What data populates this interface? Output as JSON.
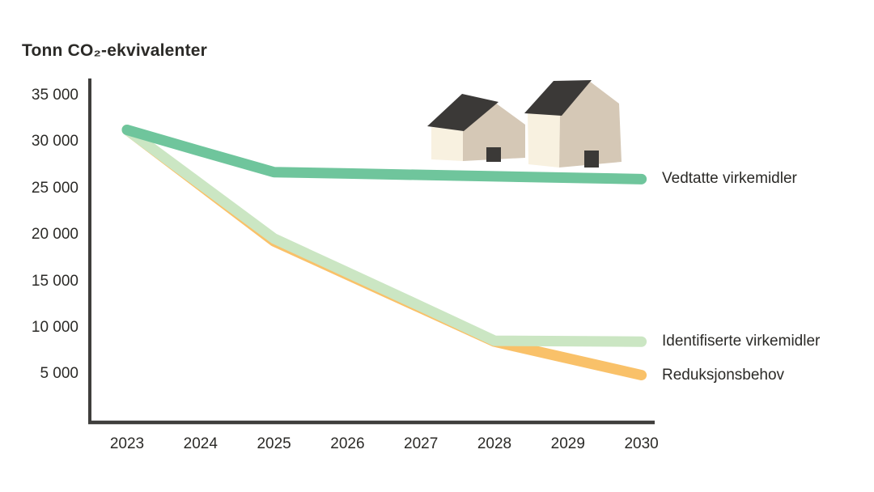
{
  "title": "Tonn CO₂-ekvivalenter",
  "colors": {
    "vedtatte": "#6fc59c",
    "identifiserte": "#cbe6c3",
    "reduksjon": "#f9c169",
    "axis": "#3f3e3c",
    "text": "#2b2a27",
    "house_cream": "#f8f1e0",
    "house_tan": "#d5c8b6",
    "house_dark": "#3b3937"
  },
  "chart_data": {
    "type": "line",
    "title": "Tonn CO₂-ekvivalenter",
    "ylabel": "Tonn CO₂-ekvivalenter",
    "x": [
      2023,
      2024,
      2025,
      2026,
      2027,
      2028,
      2029,
      2030
    ],
    "series": [
      {
        "name": "Vedtatte virkemidler",
        "color": "#6fc59c",
        "values": [
          31300,
          29000,
          26750,
          26600,
          26450,
          26300,
          26150,
          26000
        ]
      },
      {
        "name": "Identifiserte virkemidler",
        "color": "#cbe6c3",
        "values": [
          31300,
          25450,
          19600,
          15950,
          12300,
          8600,
          8550,
          8500
        ]
      },
      {
        "name": "Reduksjonsbehov",
        "color": "#f9c169",
        "values": [
          31300,
          25300,
          19300,
          15700,
          12100,
          8500,
          6700,
          4900
        ]
      }
    ],
    "ylim": [
      0,
      36500
    ],
    "yticks": [
      35000,
      30000,
      25000,
      20000,
      15000,
      10000,
      5000
    ],
    "ytick_labels": [
      "35 000",
      "30 000",
      "25 000",
      "20 000",
      "15 000",
      "10 000",
      "5 000"
    ],
    "grid": false,
    "legend_position": "right-of-line-ends",
    "annotations": [
      "two-houses-illustration"
    ]
  }
}
